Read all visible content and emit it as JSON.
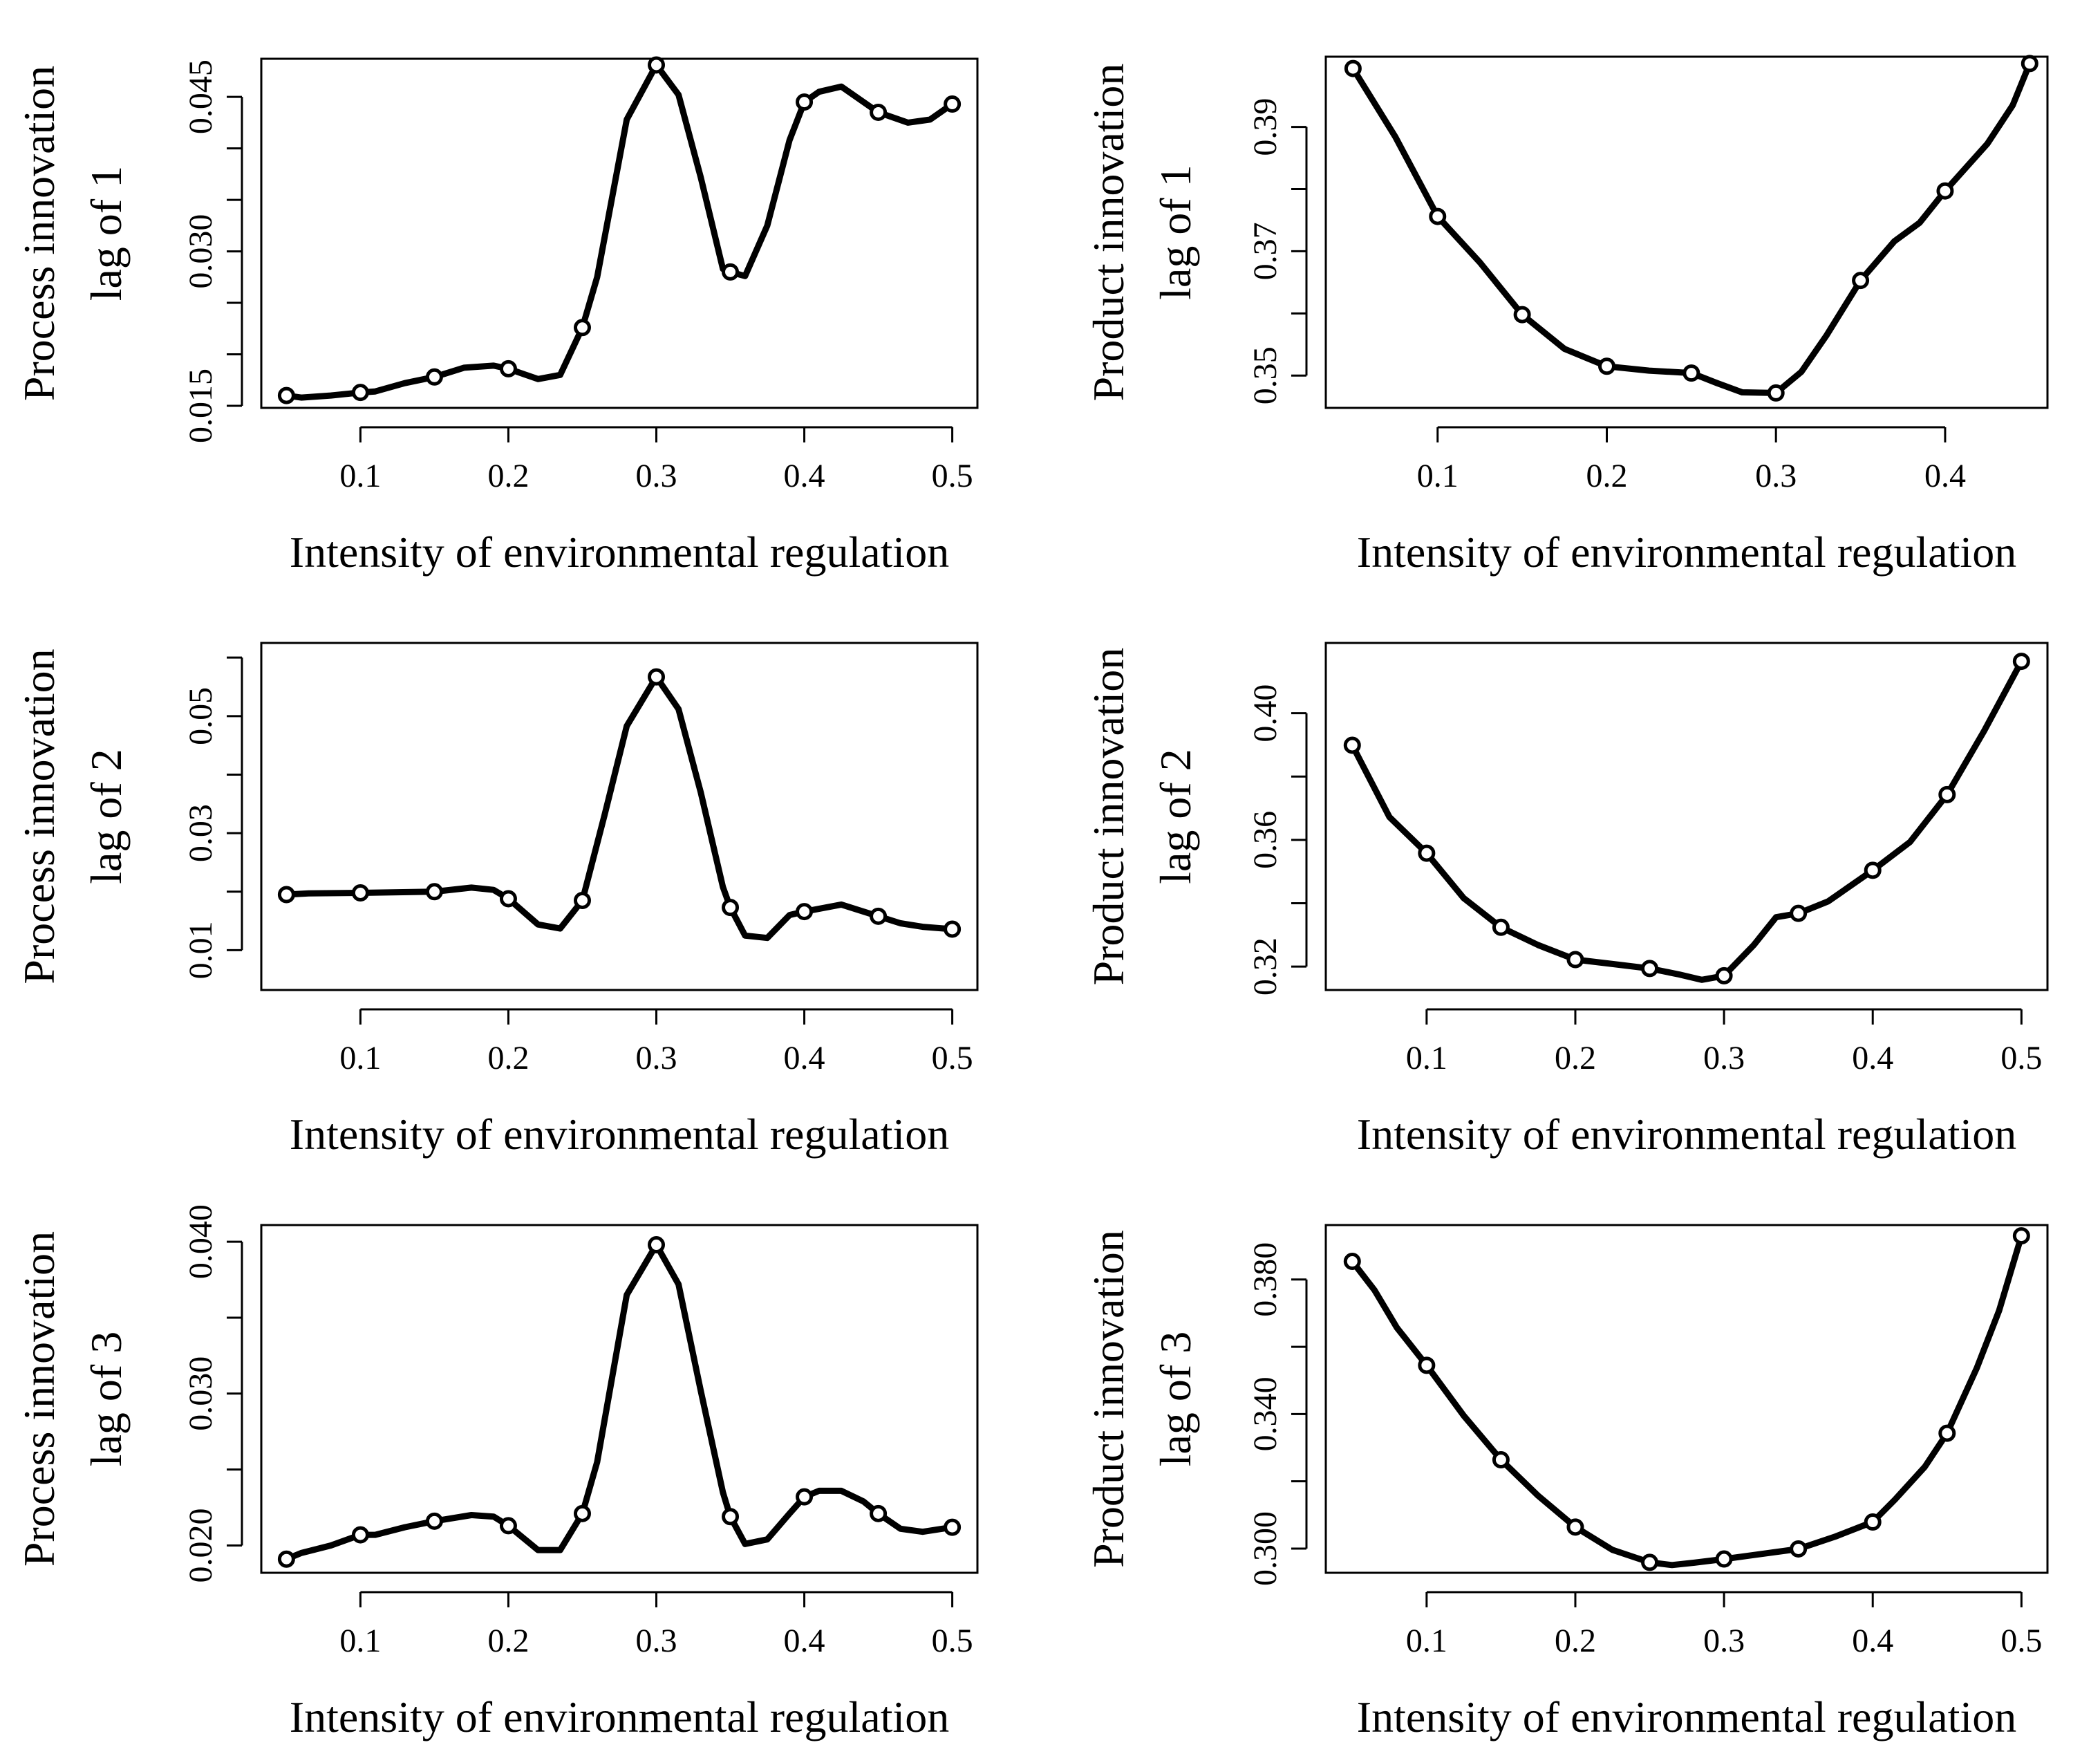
{
  "figure": {
    "xlabel": "Intensity of environmental regulation"
  },
  "chart_data": [
    {
      "type": "line",
      "ylabel": [
        "Process innovation",
        "lag of 1"
      ],
      "xlabel": "Intensity of environmental regulation",
      "xlim": [
        0.033,
        0.517
      ],
      "ylim": [
        0.0148,
        0.0487
      ],
      "xticks": [
        0.1,
        0.2,
        0.3,
        0.4,
        0.5
      ],
      "xtick_labels": [
        "0.1",
        "0.2",
        "0.3",
        "0.4",
        "0.5"
      ],
      "yticks": [
        0.015,
        0.02,
        0.025,
        0.03,
        0.035,
        0.04,
        0.045
      ],
      "ytick_labels": [
        "0.015",
        "",
        "",
        "0.030",
        "",
        "",
        "0.045"
      ],
      "x": [
        0.05,
        0.06,
        0.08,
        0.1,
        0.11,
        0.13,
        0.15,
        0.17,
        0.19,
        0.2,
        0.22,
        0.235,
        0.25,
        0.26,
        0.28,
        0.3,
        0.315,
        0.33,
        0.345,
        0.35,
        0.36,
        0.375,
        0.39,
        0.4,
        0.41,
        0.425,
        0.44,
        0.45,
        0.47,
        0.485,
        0.5
      ],
      "y": [
        0.016,
        0.0158,
        0.016,
        0.0163,
        0.0164,
        0.0172,
        0.0178,
        0.0187,
        0.0189,
        0.0186,
        0.0176,
        0.018,
        0.0226,
        0.0275,
        0.0428,
        0.0481,
        0.0452,
        0.0372,
        0.0283,
        0.028,
        0.0276,
        0.0325,
        0.0408,
        0.0445,
        0.0455,
        0.046,
        0.0445,
        0.0435,
        0.0425,
        0.0428,
        0.0443
      ],
      "markers_x": [
        0.05,
        0.1,
        0.15,
        0.2,
        0.25,
        0.3,
        0.35,
        0.4,
        0.45,
        0.5
      ],
      "markers_y": [
        0.016,
        0.0163,
        0.0178,
        0.0186,
        0.0226,
        0.0481,
        0.028,
        0.0445,
        0.0435,
        0.0443
      ]
    },
    {
      "type": "line",
      "ylabel": [
        "Product innovation",
        "lag of 1"
      ],
      "xlabel": "Intensity of environmental regulation",
      "xlim": [
        0.0339,
        0.4605
      ],
      "ylim": [
        0.3448,
        0.4013
      ],
      "xticks": [
        0.1,
        0.2,
        0.3,
        0.4
      ],
      "xtick_labels": [
        "0.1",
        "0.2",
        "0.3",
        "0.4"
      ],
      "yticks": [
        0.35,
        0.36,
        0.37,
        0.38,
        0.39
      ],
      "ytick_labels": [
        "0.35",
        "",
        "0.37",
        "",
        "0.39"
      ],
      "x": [
        0.05,
        0.075,
        0.1,
        0.125,
        0.15,
        0.175,
        0.2,
        0.225,
        0.25,
        0.265,
        0.28,
        0.3,
        0.315,
        0.33,
        0.35,
        0.37,
        0.385,
        0.4,
        0.425,
        0.44,
        0.45
      ],
      "y": [
        0.3994,
        0.3884,
        0.3756,
        0.3682,
        0.3598,
        0.3543,
        0.3515,
        0.3508,
        0.3504,
        0.3488,
        0.3473,
        0.3472,
        0.3506,
        0.3565,
        0.3653,
        0.3716,
        0.3746,
        0.3797,
        0.3873,
        0.3935,
        0.4002
      ],
      "markers_x": [
        0.05,
        0.1,
        0.15,
        0.2,
        0.25,
        0.3,
        0.35,
        0.4,
        0.45
      ],
      "markers_y": [
        0.3994,
        0.3756,
        0.3598,
        0.3515,
        0.3504,
        0.3472,
        0.3653,
        0.3797,
        0.4002
      ]
    },
    {
      "type": "line",
      "ylabel": [
        "Process innovation",
        "lag of 2"
      ],
      "xlabel": "Intensity of environmental regulation",
      "xlim": [
        0.033,
        0.517
      ],
      "ylim": [
        0.0032,
        0.0625
      ],
      "xticks": [
        0.1,
        0.2,
        0.3,
        0.4,
        0.5
      ],
      "xtick_labels": [
        "0.1",
        "0.2",
        "0.3",
        "0.4",
        "0.5"
      ],
      "yticks": [
        0.01,
        0.02,
        0.03,
        0.04,
        0.05,
        0.06
      ],
      "ytick_labels": [
        "0.01",
        "",
        "0.03",
        "",
        "0.05",
        ""
      ],
      "x": [
        0.05,
        0.065,
        0.1,
        0.15,
        0.175,
        0.19,
        0.2,
        0.22,
        0.235,
        0.25,
        0.265,
        0.28,
        0.3,
        0.315,
        0.33,
        0.345,
        0.35,
        0.36,
        0.375,
        0.39,
        0.4,
        0.425,
        0.45,
        0.465,
        0.48,
        0.5
      ],
      "y": [
        0.0195,
        0.0197,
        0.0198,
        0.02,
        0.0207,
        0.0203,
        0.0188,
        0.0144,
        0.0137,
        0.0185,
        0.0331,
        0.0483,
        0.0567,
        0.0512,
        0.037,
        0.0208,
        0.0173,
        0.0125,
        0.0121,
        0.016,
        0.0166,
        0.0178,
        0.0158,
        0.0146,
        0.014,
        0.0136
      ],
      "markers_x": [
        0.05,
        0.1,
        0.15,
        0.2,
        0.25,
        0.3,
        0.35,
        0.4,
        0.45,
        0.5
      ],
      "markers_y": [
        0.0195,
        0.0198,
        0.02,
        0.0188,
        0.0185,
        0.0567,
        0.0173,
        0.0166,
        0.0158,
        0.0136
      ]
    },
    {
      "type": "line",
      "ylabel": [
        "Product innovation",
        "lag of 2"
      ],
      "xlabel": "Intensity of environmental regulation",
      "xlim": [
        0.0322,
        0.5175
      ],
      "ylim": [
        0.3126,
        0.4222
      ],
      "xticks": [
        0.1,
        0.2,
        0.3,
        0.4,
        0.5
      ],
      "xtick_labels": [
        "0.1",
        "0.2",
        "0.3",
        "0.4",
        "0.5"
      ],
      "yticks": [
        0.32,
        0.34,
        0.36,
        0.38,
        0.4
      ],
      "ytick_labels": [
        "0.32",
        "",
        "0.36",
        "",
        "0.40"
      ],
      "x": [
        0.05,
        0.075,
        0.1,
        0.125,
        0.15,
        0.175,
        0.2,
        0.225,
        0.25,
        0.27,
        0.285,
        0.3,
        0.32,
        0.335,
        0.35,
        0.37,
        0.4,
        0.425,
        0.45,
        0.475,
        0.5
      ],
      "y": [
        0.3899,
        0.3672,
        0.3558,
        0.3416,
        0.3324,
        0.3268,
        0.3222,
        0.3208,
        0.3194,
        0.3175,
        0.3158,
        0.3171,
        0.3268,
        0.3356,
        0.3368,
        0.3406,
        0.3504,
        0.3593,
        0.3743,
        0.3945,
        0.4164
      ],
      "markers_x": [
        0.05,
        0.1,
        0.15,
        0.2,
        0.25,
        0.3,
        0.35,
        0.4,
        0.45,
        0.5
      ],
      "markers_y": [
        0.3899,
        0.3558,
        0.3324,
        0.3222,
        0.3194,
        0.3171,
        0.3368,
        0.3504,
        0.3743,
        0.4164
      ]
    },
    {
      "type": "line",
      "ylabel": [
        "Process innovation",
        "lag of 3"
      ],
      "xlabel": "Intensity of environmental regulation",
      "xlim": [
        0.033,
        0.517
      ],
      "ylim": [
        0.0182,
        0.0411
      ],
      "xticks": [
        0.1,
        0.2,
        0.3,
        0.4,
        0.5
      ],
      "xtick_labels": [
        "0.1",
        "0.2",
        "0.3",
        "0.4",
        "0.5"
      ],
      "yticks": [
        0.02,
        0.025,
        0.03,
        0.035,
        0.04
      ],
      "ytick_labels": [
        "0.020",
        "",
        "0.030",
        "",
        "0.040"
      ],
      "x": [
        0.05,
        0.06,
        0.08,
        0.1,
        0.11,
        0.13,
        0.15,
        0.175,
        0.19,
        0.2,
        0.22,
        0.235,
        0.25,
        0.26,
        0.28,
        0.3,
        0.315,
        0.33,
        0.345,
        0.35,
        0.36,
        0.375,
        0.39,
        0.4,
        0.41,
        0.425,
        0.44,
        0.45,
        0.465,
        0.48,
        0.5
      ],
      "y": [
        0.0191,
        0.0195,
        0.02,
        0.0207,
        0.0207,
        0.0212,
        0.0216,
        0.022,
        0.0219,
        0.0213,
        0.0197,
        0.0197,
        0.0221,
        0.0255,
        0.0365,
        0.0398,
        0.0372,
        0.0302,
        0.0235,
        0.0219,
        0.0201,
        0.0204,
        0.0221,
        0.0232,
        0.0236,
        0.0236,
        0.0229,
        0.0221,
        0.0211,
        0.0209,
        0.0212
      ],
      "markers_x": [
        0.05,
        0.1,
        0.15,
        0.2,
        0.25,
        0.3,
        0.35,
        0.4,
        0.45,
        0.5
      ],
      "markers_y": [
        0.0191,
        0.0207,
        0.0216,
        0.0213,
        0.0221,
        0.0398,
        0.0219,
        0.0232,
        0.0221,
        0.0212
      ]
    },
    {
      "type": "line",
      "ylabel": [
        "Product innovation",
        "lag of 3"
      ],
      "xlabel": "Intensity of environmental regulation",
      "xlim": [
        0.0322,
        0.5175
      ],
      "ylim": [
        0.2928,
        0.3962
      ],
      "xticks": [
        0.1,
        0.2,
        0.3,
        0.4,
        0.5
      ],
      "xtick_labels": [
        "0.1",
        "0.2",
        "0.3",
        "0.4",
        "0.5"
      ],
      "yticks": [
        0.3,
        0.32,
        0.34,
        0.36,
        0.38
      ],
      "ytick_labels": [
        "0.300",
        "",
        "0.340",
        "",
        "0.380"
      ],
      "x": [
        0.05,
        0.065,
        0.08,
        0.1,
        0.125,
        0.15,
        0.175,
        0.2,
        0.225,
        0.25,
        0.265,
        0.28,
        0.3,
        0.325,
        0.35,
        0.375,
        0.4,
        0.415,
        0.435,
        0.45,
        0.47,
        0.485,
        0.5
      ],
      "y": [
        0.3854,
        0.3768,
        0.3657,
        0.3545,
        0.3395,
        0.3264,
        0.3157,
        0.3064,
        0.2996,
        0.2959,
        0.2951,
        0.2958,
        0.2969,
        0.2984,
        0.2999,
        0.3036,
        0.3079,
        0.3146,
        0.3243,
        0.3343,
        0.3537,
        0.3708,
        0.393
      ],
      "markers_x": [
        0.05,
        0.1,
        0.15,
        0.2,
        0.25,
        0.3,
        0.35,
        0.4,
        0.45,
        0.5
      ],
      "markers_y": [
        0.3854,
        0.3545,
        0.3264,
        0.3064,
        0.2959,
        0.2969,
        0.2999,
        0.3079,
        0.3343,
        0.393
      ]
    }
  ]
}
